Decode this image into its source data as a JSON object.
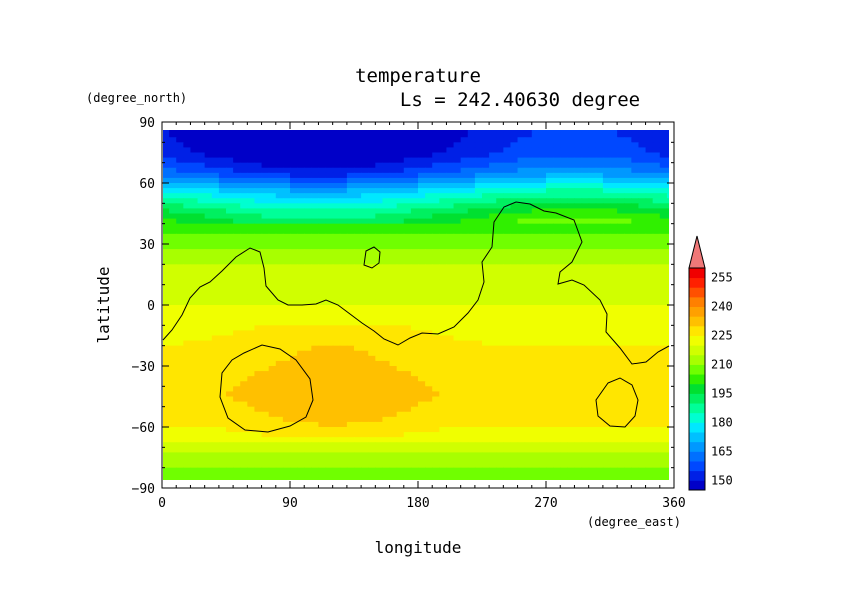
{
  "chart_data": {
    "type": "heatmap",
    "title": "temperature",
    "subtitle": "Ls = 242.40630 degree",
    "xlabel": "longitude",
    "ylabel": "latitude",
    "x_unit": "(degree_east)",
    "y_unit": "(degree_north)",
    "xlim": [
      0,
      360
    ],
    "ylim": [
      -90,
      90
    ],
    "x_ticks": [
      0,
      90,
      180,
      270,
      360
    ],
    "y_ticks": [
      90,
      60,
      30,
      0,
      -30,
      -60,
      -90
    ],
    "x_tick_labels": [
      "0",
      "90",
      "180",
      "270",
      "360"
    ],
    "y_tick_labels": [
      "90",
      "60",
      "30",
      "0",
      "−30",
      "−60",
      "−90"
    ],
    "colorbar": {
      "tick_labels": [
        "255",
        "240",
        "225",
        "210",
        "195",
        "180",
        "165",
        "150"
      ],
      "levels": [
        145,
        150,
        155,
        160,
        165,
        170,
        175,
        180,
        185,
        190,
        195,
        200,
        205,
        210,
        215,
        220,
        225,
        230,
        235,
        240,
        245,
        250,
        255,
        260
      ],
      "colors": [
        "#0000c8",
        "#0020e6",
        "#0048ff",
        "#0070ff",
        "#0098ff",
        "#00c0ff",
        "#00e8ff",
        "#00ffd0",
        "#00ff98",
        "#00f060",
        "#00e030",
        "#30f000",
        "#70ff00",
        "#a8ff00",
        "#d0ff00",
        "#f0ff00",
        "#ffe600",
        "#ffc000",
        "#ffa000",
        "#ff8000",
        "#ff5000",
        "#ff2000",
        "#f00000"
      ],
      "overflow_color": "#f07878"
    },
    "latitude_profile": [
      {
        "lat": 85,
        "temp": 148
      },
      {
        "lat": 75,
        "temp": 150
      },
      {
        "lat": 65,
        "temp": 160
      },
      {
        "lat": 55,
        "temp": 180
      },
      {
        "lat": 45,
        "temp": 195
      },
      {
        "lat": 35,
        "temp": 205
      },
      {
        "lat": 25,
        "temp": 212
      },
      {
        "lat": 15,
        "temp": 217
      },
      {
        "lat": 5,
        "temp": 219
      },
      {
        "lat": -5,
        "temp": 221
      },
      {
        "lat": -15,
        "temp": 224
      },
      {
        "lat": -25,
        "temp": 226
      },
      {
        "lat": -35,
        "temp": 228
      },
      {
        "lat": -45,
        "temp": 229
      },
      {
        "lat": -55,
        "temp": 227
      },
      {
        "lat": -65,
        "temp": 222
      },
      {
        "lat": -75,
        "temp": 213
      },
      {
        "lat": -85,
        "temp": 206
      }
    ],
    "contour_line": "topography outline (black)",
    "grid": false
  }
}
